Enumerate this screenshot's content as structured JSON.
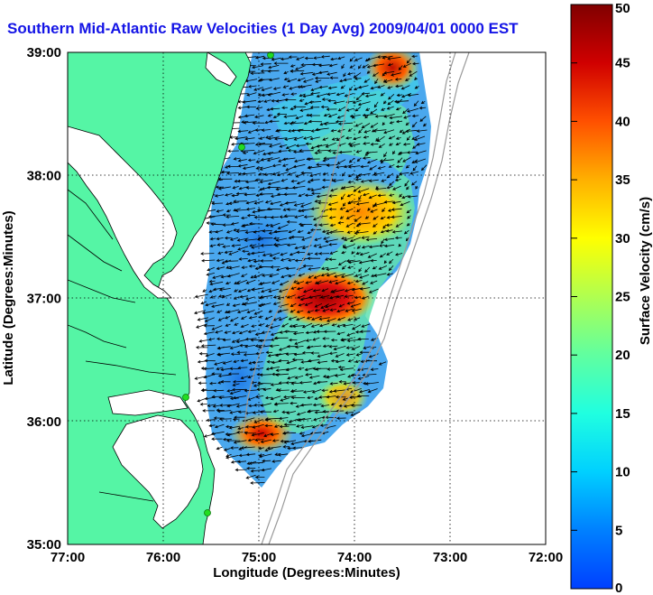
{
  "title": "Southern Mid-Atlantic Raw Velocities (1 Day Avg) 2009/04/01 0000 EST",
  "xlabel": "Longitude (Degrees:Minutes)",
  "ylabel": "Latitude (Degrees:Minutes)",
  "x_ticks": [
    "77:00",
    "76:00",
    "75:00",
    "74:00",
    "73:00",
    "72:00"
  ],
  "y_ticks": [
    "39:00",
    "38:00",
    "37:00",
    "36:00",
    "35:00"
  ],
  "colorbar": {
    "label": "Surface Velocity (cm/s)",
    "ticks": [
      "0",
      "5",
      "10",
      "15",
      "20",
      "25",
      "30",
      "35",
      "40",
      "45",
      "50"
    ],
    "min": 0,
    "max": 50
  },
  "colors": {
    "land": "#55f5a5",
    "coastline": "#000000",
    "title": "#1414e6",
    "station": "#22dd22"
  },
  "map_extent": {
    "lon": [
      -77,
      -72
    ],
    "lat": [
      35,
      39
    ]
  }
}
